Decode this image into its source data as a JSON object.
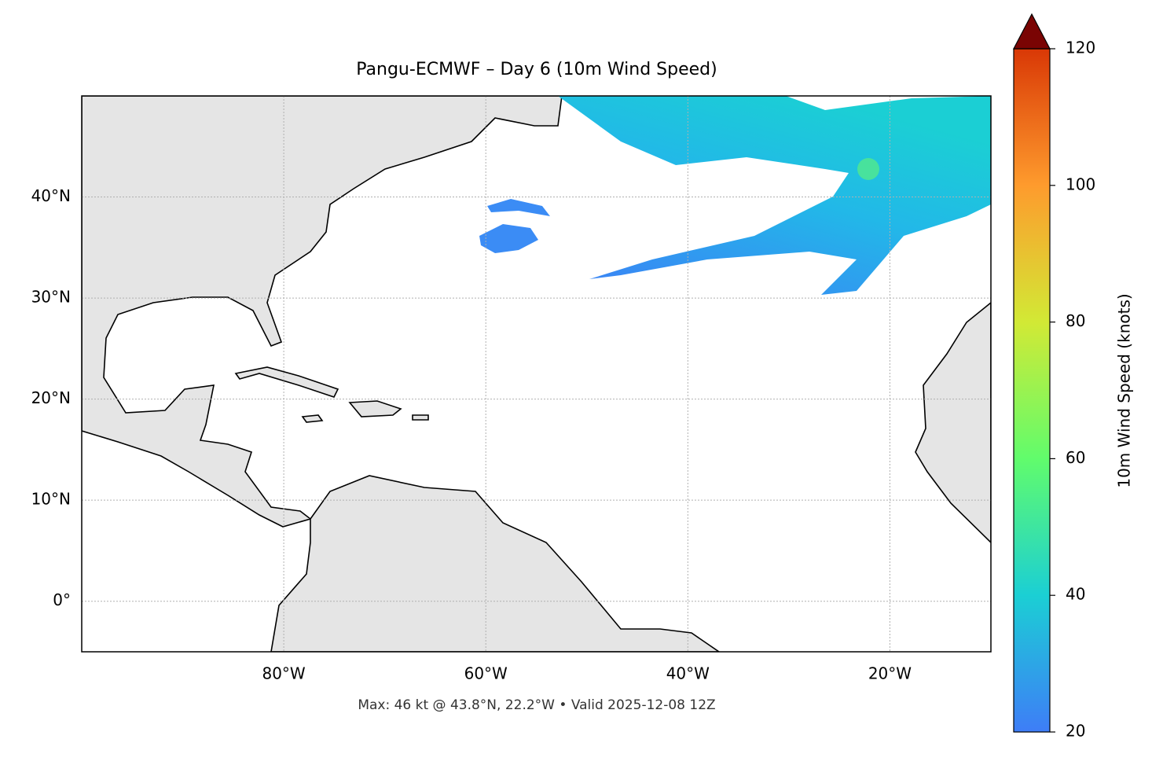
{
  "chart_data": {
    "type": "map",
    "title": "Pangu-ECMWF – Day 6 (10m Wind Speed)",
    "footer": "Max: 46 kt @ 43.8°N, 22.2°W • Valid 2025-12-08 12Z",
    "xlim": [
      -100,
      -10
    ],
    "ylim": [
      -5,
      50
    ],
    "xticks": [
      {
        "value": -80,
        "label": "80°W"
      },
      {
        "value": -60,
        "label": "60°W"
      },
      {
        "value": -40,
        "label": "40°W"
      },
      {
        "value": -20,
        "label": "20°W"
      }
    ],
    "yticks": [
      {
        "value": 0,
        "label": "0°"
      },
      {
        "value": 10,
        "label": "10°N"
      },
      {
        "value": 20,
        "label": "20°N"
      },
      {
        "value": 30,
        "label": "30°N"
      },
      {
        "value": 40,
        "label": "40°N"
      }
    ],
    "grid": true,
    "colorbar": {
      "label": "10m Wind Speed (knots)",
      "lim": [
        20,
        120
      ],
      "ticks": [
        20,
        40,
        60,
        80,
        100,
        120
      ],
      "colors": [
        "#3e7df7",
        "#1bcfd4",
        "#61fc6c",
        "#d2e935",
        "#fe9b2d",
        "#d93806",
        "#7a0403"
      ]
    }
  }
}
